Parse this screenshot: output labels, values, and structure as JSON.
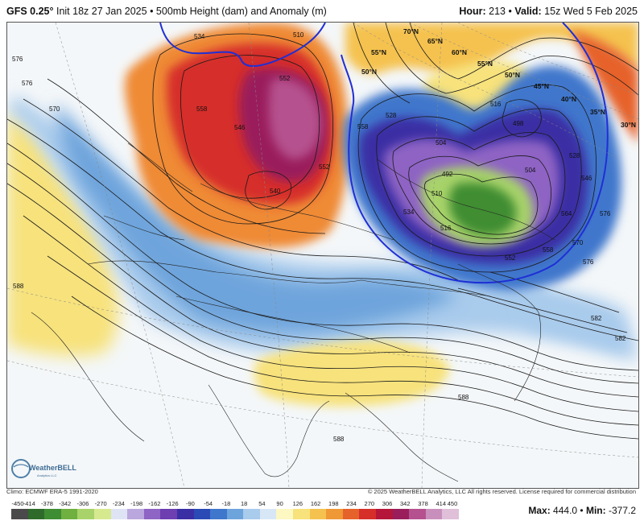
{
  "header": {
    "model": "GFS 0.25°",
    "init": "Init 18z 27 Jan 2025",
    "product": "500mb Height (dam) and Anomaly (m)",
    "hour_label": "Hour:",
    "hour": "213",
    "valid_label": "Valid:",
    "valid": "15z Wed 5 Feb 2025"
  },
  "footer": {
    "climo": "Climo: ECMWF ERA-5 1991-2020",
    "copyright": "© 2025 WeatherBELL Analytics, LLC All rights reserved. License required for commercial distribution",
    "max_label": "Max:",
    "max": "444.0",
    "min_label": "Min:",
    "min": "-377.2",
    "logo_text": "WeatherBELL",
    "logo_sub": "Analytics LLC"
  },
  "colorbar": {
    "ticks": [
      "-450",
      "-414",
      "-378",
      "-342",
      "-306",
      "-270",
      "-234",
      "-198",
      "-162",
      "-126",
      "-90",
      "-54",
      "-18",
      "18",
      "54",
      "90",
      "126",
      "162",
      "198",
      "234",
      "270",
      "306",
      "342",
      "378",
      "414",
      "450"
    ],
    "colors": [
      "#4a4a4a",
      "#2e6b2a",
      "#3f8d33",
      "#6fb040",
      "#a8d36a",
      "#d7e98f",
      "#dfe4f5",
      "#b9a7dd",
      "#8e64c4",
      "#6d3fb0",
      "#3a2ea4",
      "#2a4bb5",
      "#3f77cc",
      "#6ea4dc",
      "#a9cbec",
      "#d8e7f6",
      "#fdf7c2",
      "#f7e27b",
      "#f5c24f",
      "#ef9836",
      "#e6622b",
      "#d62f2a",
      "#b5173a",
      "#9a1e5c",
      "#b5518e",
      "#c98fbc",
      "#e0bfd9"
    ]
  },
  "map": {
    "contour_labels": [
      "534",
      "576",
      "510",
      "558",
      "552",
      "546",
      "540",
      "552",
      "528",
      "558",
      "504",
      "516",
      "498",
      "492",
      "504",
      "510",
      "516",
      "528",
      "534",
      "546",
      "552",
      "558",
      "564",
      "570",
      "576",
      "582",
      "588",
      "570",
      "576",
      "576",
      "582",
      "588",
      "588"
    ],
    "lat_labels": [
      "70°N",
      "65°N",
      "60°N",
      "55°N",
      "50°N",
      "45°N",
      "40°N",
      "35°N",
      "30°N",
      "55°N",
      "50°N"
    ],
    "colors": {
      "strong_positive": "#c21a3c",
      "positive": "#ef8a35",
      "weak_positive": "#f7e27b",
      "negative": "#3f77cc",
      "strong_negative": "#3a2ea4",
      "deep_negative": "#3f8d33",
      "ocean": "#f2f6f9"
    }
  }
}
